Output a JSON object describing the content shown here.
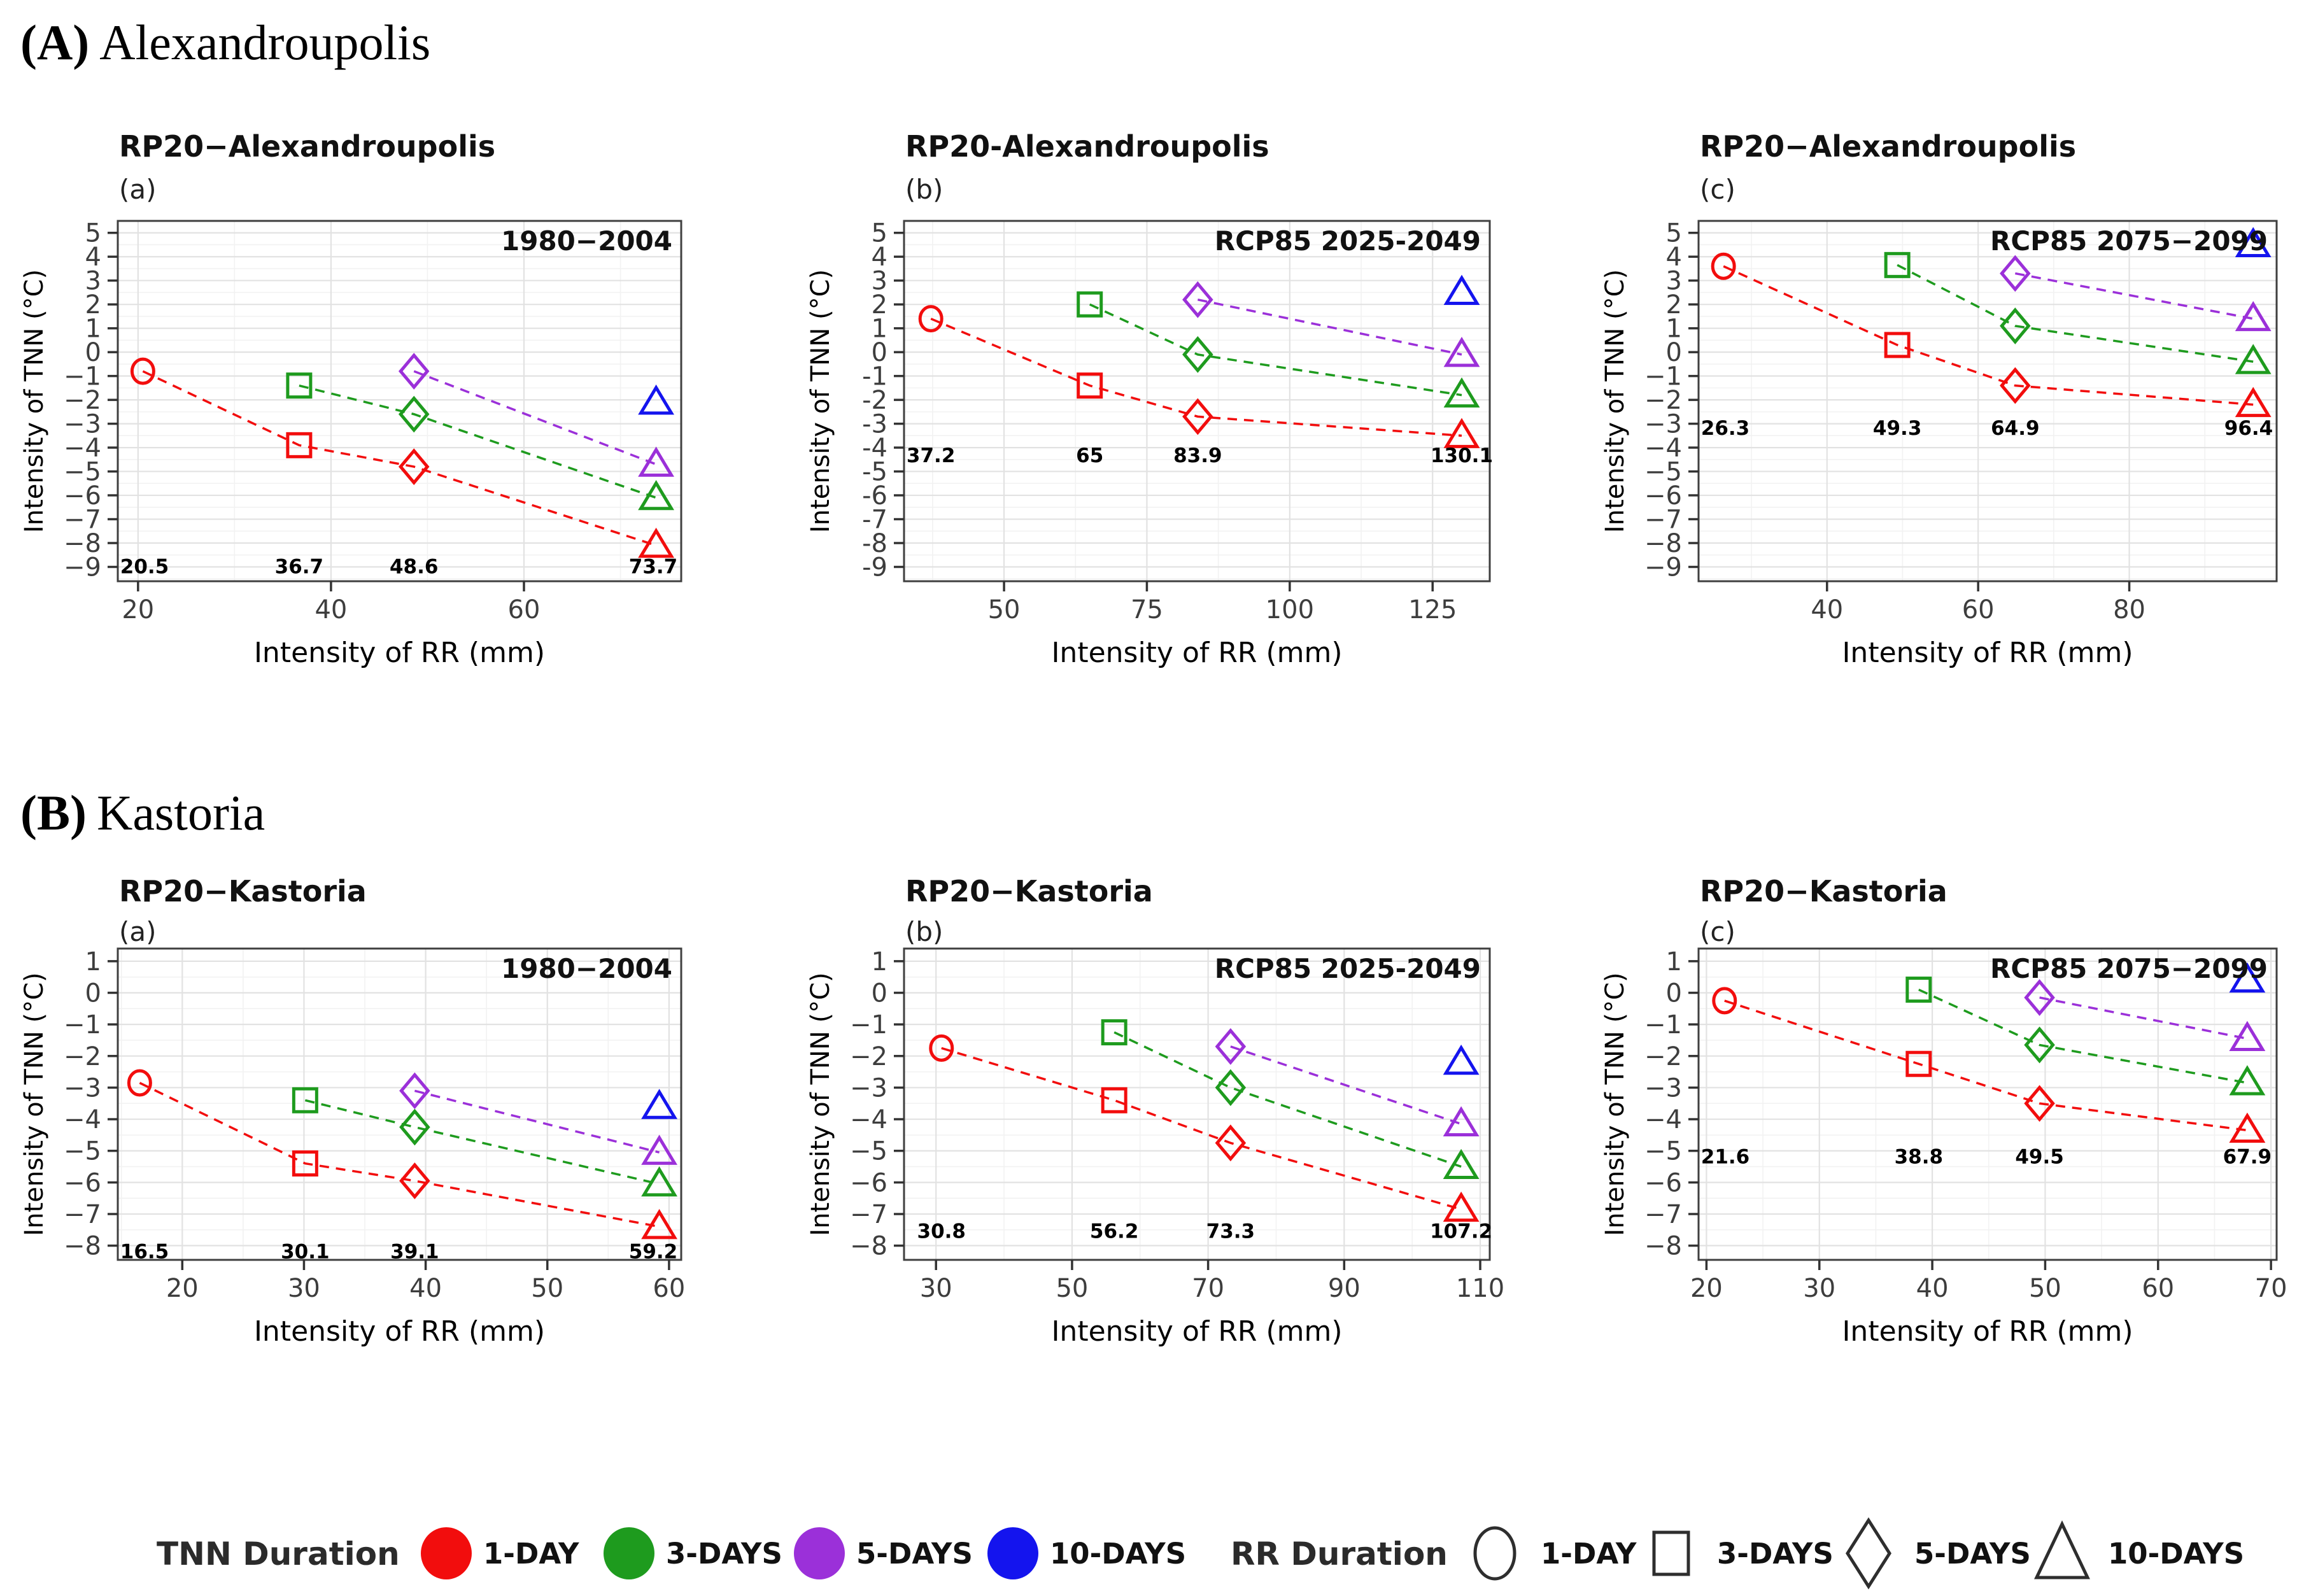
{
  "sections": [
    {
      "prefix": "(A)",
      "name": "Alexandroupolis"
    },
    {
      "prefix": "(B)",
      "name": "Kastoria"
    }
  ],
  "colors": {
    "red": "#F20D0D",
    "green": "#1E9B1E",
    "purple": "#9B30D9",
    "blue": "#1414EE",
    "panel_border": "#3F3F3F",
    "grid_major": "#E2E2E2",
    "grid_minor": "#F2F2F2",
    "tick": "#333333",
    "tick_label": "#3D3D3D",
    "legend_shape_outline": "#2E2E2E",
    "text": "#111111"
  },
  "encoding": {
    "color_by_tnn_duration": {
      "1-DAY": "red",
      "3-DAYS": "green",
      "5-DAYS": "purple",
      "10-DAYS": "blue"
    },
    "shape_by_rr_duration": {
      "1-DAY": "circle",
      "3-DAYS": "square",
      "5-DAYS": "diamond",
      "10-DAYS": "triangle"
    }
  },
  "legend": {
    "tnn": {
      "title": "TNN Duration",
      "items": [
        {
          "label": "1-DAY",
          "color": "red"
        },
        {
          "label": "3-DAYS",
          "color": "green"
        },
        {
          "label": "5-DAYS",
          "color": "purple"
        },
        {
          "label": "10-DAYS",
          "color": "blue"
        }
      ]
    },
    "rr": {
      "title": "RR Duration",
      "items": [
        {
          "label": "1-DAY",
          "shape": "circle"
        },
        {
          "label": "3-DAYS",
          "shape": "square"
        },
        {
          "label": "5-DAYS",
          "shape": "diamond"
        },
        {
          "label": "10-DAYS",
          "shape": "triangle"
        }
      ]
    }
  },
  "chart_data": [
    {
      "id": "A-a",
      "type": "scatter",
      "station": "Alexandroupolis",
      "title": "RP20−Alexandroupolis",
      "panel_label": "(a)",
      "period_label": "1980−2004",
      "xlabel": "Intensity of RR (mm)",
      "ylabel": "Intensity of TNN (°C)",
      "xlim": [
        17.9,
        76.3
      ],
      "ylim": [
        -9.6,
        5.5
      ],
      "xticks": [
        {
          "v": 20,
          "label": "20"
        },
        {
          "v": 40,
          "label": "40"
        },
        {
          "v": 60,
          "label": "60"
        }
      ],
      "yticks": [
        {
          "v": 5,
          "label": "5"
        },
        {
          "v": 4,
          "label": "4"
        },
        {
          "v": 3,
          "label": "3"
        },
        {
          "v": 2,
          "label": "2"
        },
        {
          "v": 1,
          "label": "1"
        },
        {
          "v": 0,
          "label": "0"
        },
        {
          "v": -1,
          "label": "−1"
        },
        {
          "v": -2,
          "label": "−2"
        },
        {
          "v": -3,
          "label": "−3"
        },
        {
          "v": -4,
          "label": "−4"
        },
        {
          "v": -5,
          "label": "−5"
        },
        {
          "v": -6,
          "label": "−6"
        },
        {
          "v": -7,
          "label": "−7"
        },
        {
          "v": -8,
          "label": "−8"
        },
        {
          "v": -9,
          "label": "−9"
        }
      ],
      "x_values": [
        20.5,
        36.7,
        48.6,
        73.7
      ],
      "x_value_labels": [
        "20.5",
        "36.7",
        "48.6",
        "73.7"
      ],
      "x_value_label_y": -9.0,
      "series": [
        {
          "tnn_duration": "1-DAY",
          "color": "red",
          "x": [
            20.5,
            36.7,
            48.6,
            73.7
          ],
          "y": [
            -0.8,
            -3.9,
            -4.8,
            -8.1
          ],
          "shapes": [
            "circle",
            "square",
            "diamond",
            "triangle"
          ]
        },
        {
          "tnn_duration": "3-DAYS",
          "color": "green",
          "x": [
            36.7,
            48.6,
            73.7
          ],
          "y": [
            -1.4,
            -2.6,
            -6.1
          ],
          "shapes": [
            "square",
            "diamond",
            "triangle"
          ]
        },
        {
          "tnn_duration": "5-DAYS",
          "color": "purple",
          "x": [
            48.6,
            73.7
          ],
          "y": [
            -0.8,
            -4.7
          ],
          "shapes": [
            "diamond",
            "triangle"
          ]
        },
        {
          "tnn_duration": "10-DAYS",
          "color": "blue",
          "x": [
            73.7
          ],
          "y": [
            -2.1
          ],
          "shapes": [
            "triangle"
          ]
        }
      ]
    },
    {
      "id": "A-b",
      "type": "scatter",
      "station": "Alexandroupolis",
      "title": "RP20-Alexandroupolis",
      "panel_label": "(b)",
      "period_label": "RCP85 2025-2049",
      "xlabel": "Intensity of RR (mm)",
      "ylabel": "Intensity of TNN (°C)",
      "xlim": [
        32.5,
        135
      ],
      "ylim": [
        -9.6,
        5.5
      ],
      "xticks": [
        {
          "v": 50,
          "label": "50"
        },
        {
          "v": 75,
          "label": "75"
        },
        {
          "v": 100,
          "label": "100"
        },
        {
          "v": 125,
          "label": "125"
        }
      ],
      "yticks": [
        {
          "v": 5,
          "label": "5"
        },
        {
          "v": 4,
          "label": "4"
        },
        {
          "v": 3,
          "label": "3"
        },
        {
          "v": 2,
          "label": "2"
        },
        {
          "v": 1,
          "label": "1"
        },
        {
          "v": 0,
          "label": "0"
        },
        {
          "v": -1,
          "label": "-1"
        },
        {
          "v": -2,
          "label": "-2"
        },
        {
          "v": -3,
          "label": "-3"
        },
        {
          "v": -4,
          "label": "-4"
        },
        {
          "v": -5,
          "label": "-5"
        },
        {
          "v": -6,
          "label": "-6"
        },
        {
          "v": -7,
          "label": "-7"
        },
        {
          "v": -8,
          "label": "-8"
        },
        {
          "v": -9,
          "label": "-9"
        }
      ],
      "x_values": [
        37.2,
        65,
        83.9,
        130.1
      ],
      "x_value_labels": [
        "37.2",
        "65",
        "83.9",
        "130.1"
      ],
      "x_value_label_y": -4.35,
      "series": [
        {
          "tnn_duration": "1-DAY",
          "color": "red",
          "x": [
            37.2,
            65,
            83.9,
            130.1
          ],
          "y": [
            1.4,
            -1.4,
            -2.7,
            -3.5
          ],
          "shapes": [
            "circle",
            "square",
            "diamond",
            "triangle"
          ]
        },
        {
          "tnn_duration": "3-DAYS",
          "color": "green",
          "x": [
            65,
            83.9,
            130.1
          ],
          "y": [
            2.0,
            -0.1,
            -1.8
          ],
          "shapes": [
            "square",
            "diamond",
            "triangle"
          ]
        },
        {
          "tnn_duration": "5-DAYS",
          "color": "purple",
          "x": [
            83.9,
            130.1
          ],
          "y": [
            2.2,
            -0.1
          ],
          "shapes": [
            "diamond",
            "triangle"
          ]
        },
        {
          "tnn_duration": "10-DAYS",
          "color": "blue",
          "x": [
            130.1
          ],
          "y": [
            2.5
          ],
          "shapes": [
            "triangle"
          ]
        }
      ]
    },
    {
      "id": "A-c",
      "type": "scatter",
      "station": "Alexandroupolis",
      "title": "RP20−Alexandroupolis",
      "panel_label": "(c)",
      "period_label": "RCP85 2075−2099",
      "xlabel": "Intensity of RR (mm)",
      "ylabel": "Intensity of TNN (°C)",
      "xlim": [
        23,
        99.5
      ],
      "ylim": [
        -9.6,
        5.5
      ],
      "xticks": [
        {
          "v": 40,
          "label": "40"
        },
        {
          "v": 60,
          "label": "60"
        },
        {
          "v": 80,
          "label": "80"
        }
      ],
      "yticks": [
        {
          "v": 5,
          "label": "5"
        },
        {
          "v": 4,
          "label": "4"
        },
        {
          "v": 3,
          "label": "3"
        },
        {
          "v": 2,
          "label": "2"
        },
        {
          "v": 1,
          "label": "1"
        },
        {
          "v": 0,
          "label": "0"
        },
        {
          "v": -1,
          "label": "−1"
        },
        {
          "v": -2,
          "label": "−2"
        },
        {
          "v": -3,
          "label": "−3"
        },
        {
          "v": -4,
          "label": "−4"
        },
        {
          "v": -5,
          "label": "−5"
        },
        {
          "v": -6,
          "label": "−6"
        },
        {
          "v": -7,
          "label": "−7"
        },
        {
          "v": -8,
          "label": "−8"
        },
        {
          "v": -9,
          "label": "−9"
        }
      ],
      "x_values": [
        26.3,
        49.3,
        64.9,
        96.4
      ],
      "x_value_labels": [
        "26.3",
        "49.3",
        "64.9",
        "96.4"
      ],
      "x_value_label_y": -3.2,
      "series": [
        {
          "tnn_duration": "1-DAY",
          "color": "red",
          "x": [
            26.3,
            49.3,
            64.9,
            96.4
          ],
          "y": [
            3.6,
            0.3,
            -1.4,
            -2.2
          ],
          "shapes": [
            "circle",
            "square",
            "diamond",
            "triangle"
          ]
        },
        {
          "tnn_duration": "3-DAYS",
          "color": "green",
          "x": [
            49.3,
            64.9,
            96.4
          ],
          "y": [
            3.65,
            1.1,
            -0.4
          ],
          "shapes": [
            "square",
            "diamond",
            "triangle"
          ]
        },
        {
          "tnn_duration": "5-DAYS",
          "color": "purple",
          "x": [
            64.9,
            96.4
          ],
          "y": [
            3.3,
            1.4
          ],
          "shapes": [
            "diamond",
            "triangle"
          ]
        },
        {
          "tnn_duration": "10-DAYS",
          "color": "blue",
          "x": [
            96.4
          ],
          "y": [
            4.5
          ],
          "shapes": [
            "triangle"
          ]
        }
      ]
    },
    {
      "id": "B-a",
      "type": "scatter",
      "station": "Kastoria",
      "title": "RP20−Kastoria",
      "panel_label": "(a)",
      "period_label": "1980−2004",
      "xlabel": "Intensity of RR (mm)",
      "ylabel": "Intensity of TNN (°C)",
      "xlim": [
        14.7,
        61
      ],
      "ylim": [
        -8.45,
        1.4
      ],
      "xticks": [
        {
          "v": 20,
          "label": "20"
        },
        {
          "v": 30,
          "label": "30"
        },
        {
          "v": 40,
          "label": "40"
        },
        {
          "v": 50,
          "label": "50"
        },
        {
          "v": 60,
          "label": "60"
        }
      ],
      "yticks": [
        {
          "v": 1,
          "label": "1"
        },
        {
          "v": 0,
          "label": "0"
        },
        {
          "v": -1,
          "label": "−1"
        },
        {
          "v": -2,
          "label": "−2"
        },
        {
          "v": -3,
          "label": "−3"
        },
        {
          "v": -4,
          "label": "−4"
        },
        {
          "v": -5,
          "label": "−5"
        },
        {
          "v": -6,
          "label": "−6"
        },
        {
          "v": -7,
          "label": "−7"
        },
        {
          "v": -8,
          "label": "−8"
        }
      ],
      "x_values": [
        16.5,
        30.1,
        39.1,
        59.2
      ],
      "x_value_labels": [
        "16.5",
        "30.1",
        "39.1",
        "59.2"
      ],
      "x_value_label_y": -8.2,
      "series": [
        {
          "tnn_duration": "1-DAY",
          "color": "red",
          "x": [
            16.5,
            30.1,
            39.1,
            59.2
          ],
          "y": [
            -2.85,
            -5.4,
            -5.95,
            -7.4
          ],
          "shapes": [
            "circle",
            "square",
            "diamond",
            "triangle"
          ]
        },
        {
          "tnn_duration": "3-DAYS",
          "color": "green",
          "x": [
            30.1,
            39.1,
            59.2
          ],
          "y": [
            -3.4,
            -4.25,
            -6.05
          ],
          "shapes": [
            "square",
            "diamond",
            "triangle"
          ]
        },
        {
          "tnn_duration": "5-DAYS",
          "color": "purple",
          "x": [
            39.1,
            59.2
          ],
          "y": [
            -3.1,
            -5.05
          ],
          "shapes": [
            "diamond",
            "triangle"
          ]
        },
        {
          "tnn_duration": "10-DAYS",
          "color": "blue",
          "x": [
            59.2
          ],
          "y": [
            -3.6
          ],
          "shapes": [
            "triangle"
          ]
        }
      ]
    },
    {
      "id": "B-b",
      "type": "scatter",
      "station": "Kastoria",
      "title": "RP20−Kastoria",
      "panel_label": "(b)",
      "period_label": "RCP85 2025-2049",
      "xlabel": "Intensity of RR (mm)",
      "ylabel": "Intensity of TNN (°C)",
      "xlim": [
        25.3,
        111.4
      ],
      "ylim": [
        -8.45,
        1.4
      ],
      "xticks": [
        {
          "v": 30,
          "label": "30"
        },
        {
          "v": 50,
          "label": "50"
        },
        {
          "v": 70,
          "label": "70"
        },
        {
          "v": 90,
          "label": "90"
        },
        {
          "v": 110,
          "label": "110"
        }
      ],
      "yticks": [
        {
          "v": 1,
          "label": "1"
        },
        {
          "v": 0,
          "label": "0"
        },
        {
          "v": -1,
          "label": "−1"
        },
        {
          "v": -2,
          "label": "−2"
        },
        {
          "v": -3,
          "label": "−3"
        },
        {
          "v": -4,
          "label": "−4"
        },
        {
          "v": -5,
          "label": "−5"
        },
        {
          "v": -6,
          "label": "−6"
        },
        {
          "v": -7,
          "label": "−7"
        },
        {
          "v": -8,
          "label": "−8"
        }
      ],
      "x_values": [
        30.8,
        56.2,
        73.3,
        107.2
      ],
      "x_value_labels": [
        "30.8",
        "56.2",
        "73.3",
        "107.2"
      ],
      "x_value_label_y": -7.55,
      "series": [
        {
          "tnn_duration": "1-DAY",
          "color": "red",
          "x": [
            30.8,
            56.2,
            73.3,
            107.2
          ],
          "y": [
            -1.75,
            -3.4,
            -4.75,
            -6.85
          ],
          "shapes": [
            "circle",
            "square",
            "diamond",
            "triangle"
          ]
        },
        {
          "tnn_duration": "3-DAYS",
          "color": "green",
          "x": [
            56.2,
            73.3,
            107.2
          ],
          "y": [
            -1.25,
            -3.0,
            -5.5
          ],
          "shapes": [
            "square",
            "diamond",
            "triangle"
          ]
        },
        {
          "tnn_duration": "5-DAYS",
          "color": "purple",
          "x": [
            73.3,
            107.2
          ],
          "y": [
            -1.7,
            -4.15
          ],
          "shapes": [
            "diamond",
            "triangle"
          ]
        },
        {
          "tnn_duration": "10-DAYS",
          "color": "blue",
          "x": [
            107.2
          ],
          "y": [
            -2.2
          ],
          "shapes": [
            "triangle"
          ]
        }
      ]
    },
    {
      "id": "B-c",
      "type": "scatter",
      "station": "Kastoria",
      "title": "RP20−Kastoria",
      "panel_label": "(c)",
      "period_label": "RCP85 2075−2099",
      "xlabel": "Intensity of RR (mm)",
      "ylabel": "Intensity of TNN (°C)",
      "xlim": [
        19.3,
        70.5
      ],
      "ylim": [
        -8.45,
        1.4
      ],
      "xticks": [
        {
          "v": 20,
          "label": "20"
        },
        {
          "v": 30,
          "label": "30"
        },
        {
          "v": 40,
          "label": "40"
        },
        {
          "v": 50,
          "label": "50"
        },
        {
          "v": 60,
          "label": "60"
        },
        {
          "v": 70,
          "label": "70"
        }
      ],
      "yticks": [
        {
          "v": 1,
          "label": "1"
        },
        {
          "v": 0,
          "label": "0"
        },
        {
          "v": -1,
          "label": "−1"
        },
        {
          "v": -2,
          "label": "−2"
        },
        {
          "v": -3,
          "label": "−3"
        },
        {
          "v": -4,
          "label": "−4"
        },
        {
          "v": -5,
          "label": "−5"
        },
        {
          "v": -6,
          "label": "−6"
        },
        {
          "v": -7,
          "label": "−7"
        },
        {
          "v": -8,
          "label": "−8"
        }
      ],
      "x_values": [
        21.6,
        38.8,
        49.5,
        67.9
      ],
      "x_value_labels": [
        "21.6",
        "38.8",
        "49.5",
        "67.9"
      ],
      "x_value_label_y": -5.2,
      "series": [
        {
          "tnn_duration": "1-DAY",
          "color": "red",
          "x": [
            21.6,
            38.8,
            49.5,
            67.9
          ],
          "y": [
            -0.25,
            -2.25,
            -3.5,
            -4.35
          ],
          "shapes": [
            "circle",
            "square",
            "diamond",
            "triangle"
          ]
        },
        {
          "tnn_duration": "3-DAYS",
          "color": "green",
          "x": [
            38.8,
            49.5,
            67.9
          ],
          "y": [
            0.1,
            -1.65,
            -2.85
          ],
          "shapes": [
            "square",
            "diamond",
            "triangle"
          ]
        },
        {
          "tnn_duration": "5-DAYS",
          "color": "purple",
          "x": [
            49.5,
            67.9
          ],
          "y": [
            -0.15,
            -1.45
          ],
          "shapes": [
            "diamond",
            "triangle"
          ]
        },
        {
          "tnn_duration": "10-DAYS",
          "color": "blue",
          "x": [
            67.9
          ],
          "y": [
            0.4
          ],
          "shapes": [
            "triangle"
          ]
        }
      ]
    }
  ]
}
